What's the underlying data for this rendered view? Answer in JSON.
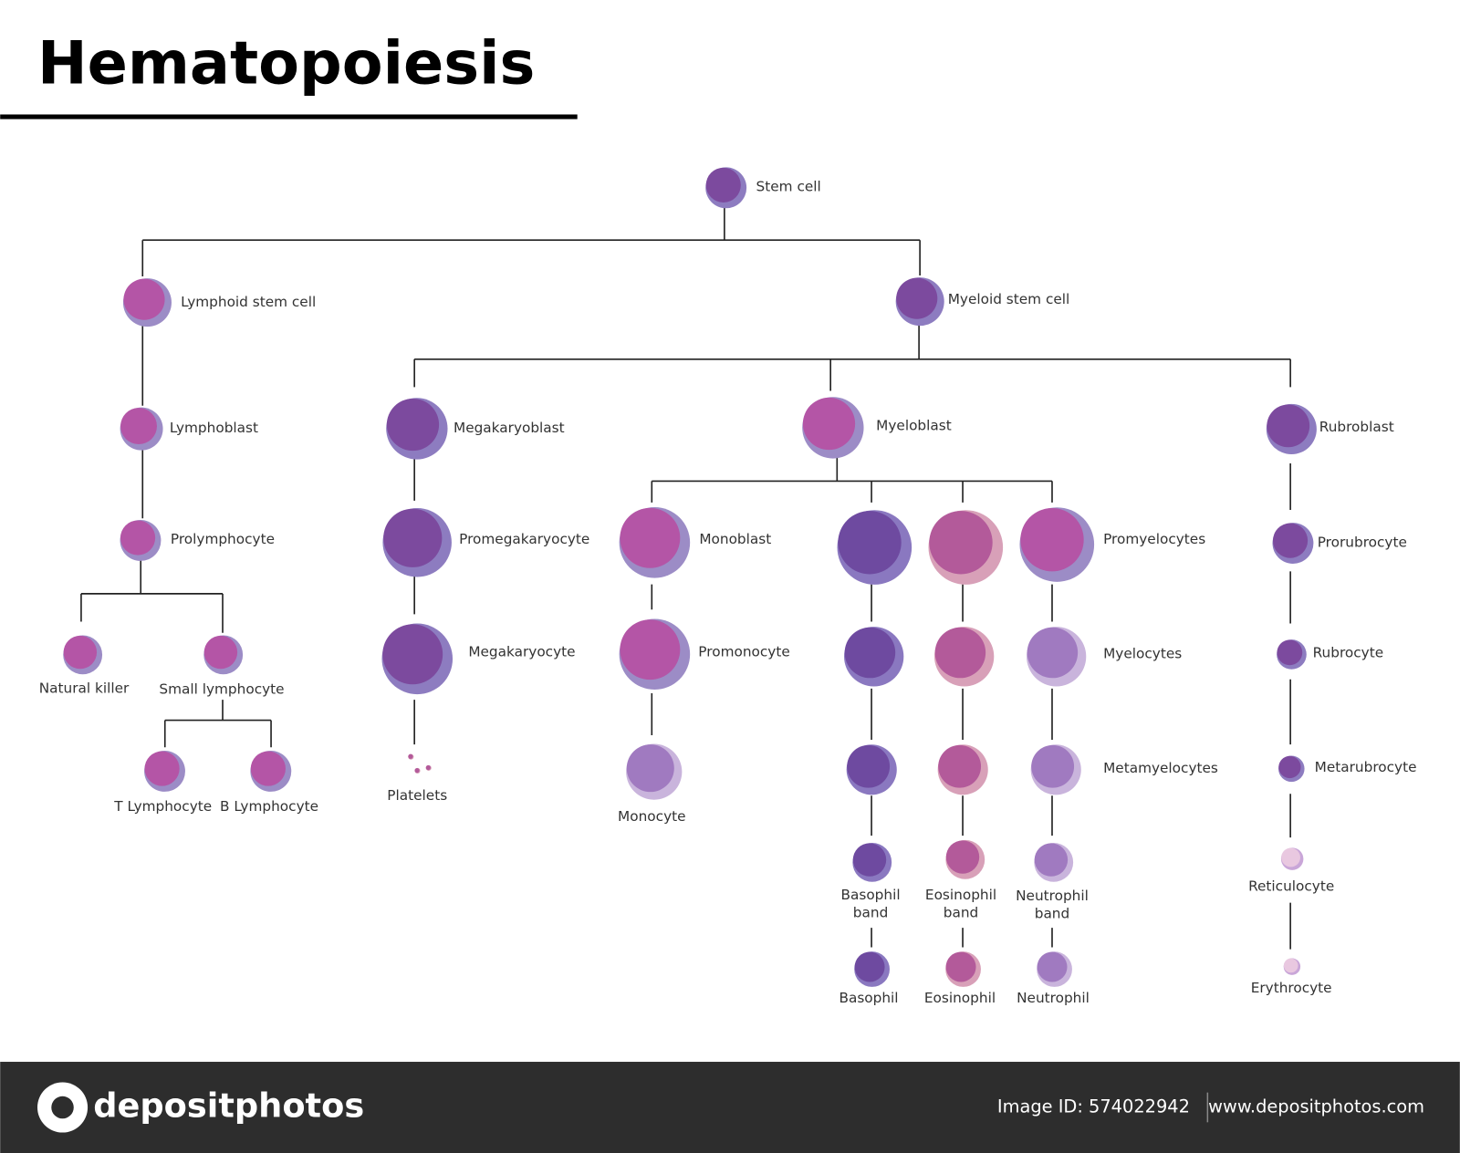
{
  "header": {
    "title": "Hematopoiesis"
  },
  "nodes": [
    {
      "label": "Stem cell"
    },
    {
      "label": "Lymphoid stem cell"
    },
    {
      "label": "Myeloid stem cell"
    },
    {
      "label": "Lymphoblast"
    },
    {
      "label": "Megakaryoblast"
    },
    {
      "label": "Myeloblast"
    },
    {
      "label": "Rubroblast"
    },
    {
      "label": "Prolymphocyte"
    },
    {
      "label": "Promegakaryocyte"
    },
    {
      "label": "Monoblast"
    },
    {
      "label": "Promyelocytes"
    },
    {
      "label": "Prorubrocyte"
    },
    {
      "label": "Natural killer"
    },
    {
      "label": "Small lymphocyte"
    },
    {
      "label": "Megakaryocyte"
    },
    {
      "label": "Promonocyte"
    },
    {
      "label": "Myelocytes"
    },
    {
      "label": "Rubrocyte"
    },
    {
      "label": "T Lymphocyte"
    },
    {
      "label": "B Lymphocyte"
    },
    {
      "label": "Platelets"
    },
    {
      "label": "Monocyte"
    },
    {
      "label": "Metamyelocytes"
    },
    {
      "label": "Metarubrocyte"
    },
    {
      "label": [
        "Basophil",
        "band"
      ]
    },
    {
      "label": [
        "Eosinophil",
        "band"
      ]
    },
    {
      "label": [
        "Neutrophil",
        "band"
      ]
    },
    {
      "label": "Reticulocyte"
    },
    {
      "label": "Basophil"
    },
    {
      "label": "Eosinophil"
    },
    {
      "label": "Neutrophil"
    },
    {
      "label": "Erythrocyte"
    }
  ],
  "footer": {
    "brand": "depositphotos",
    "image_id": "Image ID: 574022942",
    "url": "www.depositphotos.com"
  }
}
